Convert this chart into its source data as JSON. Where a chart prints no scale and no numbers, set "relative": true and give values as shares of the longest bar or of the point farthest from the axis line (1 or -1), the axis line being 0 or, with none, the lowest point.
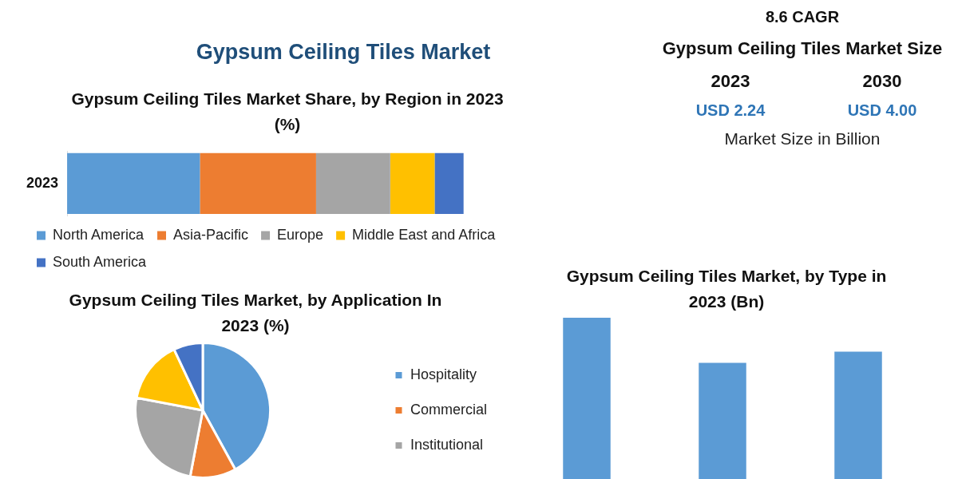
{
  "chart_data": [
    {
      "type": "other",
      "title": "Gypsum Ceiling Tiles Market"
    },
    {
      "type": "bar",
      "title": "Gypsum Ceiling Tiles Market Share, by Region in 2023 (%)",
      "orientation": "horizontal",
      "stacked": true,
      "relative": true,
      "categories": [
        "2023"
      ],
      "legend": "bottom",
      "series": [
        {
          "name": "North America",
          "color": "#5b9bd5",
          "values": [
            0.335
          ]
        },
        {
          "name": "Asia-Pacific",
          "color": "#ed7d31",
          "values": [
            0.293
          ]
        },
        {
          "name": "Europe",
          "color": "#a5a5a5",
          "values": [
            0.187
          ]
        },
        {
          "name": "Middle East and Africa",
          "color": "#ffc000",
          "values": [
            0.112
          ]
        },
        {
          "name": "South America",
          "color": "#4472c4",
          "values": [
            0.073
          ]
        }
      ]
    },
    {
      "type": "other",
      "title": "Gypsum Ceiling Tiles Market Size",
      "annotations": [
        "8.6 CAGR",
        "2023",
        "2030",
        "USD 2.24",
        "USD 4.00",
        "Market Size in Billion"
      ]
    },
    {
      "type": "pie",
      "title": "Gypsum Ceiling Tiles Market, by Application In 2023 (%)",
      "categories": [
        "Hospitality",
        "Commercial",
        "Institutional",
        null,
        null
      ],
      "values": [
        42,
        11,
        25,
        15,
        7
      ],
      "colors": [
        "#5b9bd5",
        "#ed7d31",
        "#a5a5a5",
        "#ffc000",
        "#4472c4"
      ],
      "legend": "right"
    },
    {
      "type": "bar",
      "title": "Gypsum Ceiling Tiles Market, by Type in 2023 (Bn)",
      "categories": [
        null,
        null,
        null
      ],
      "values": [
        1,
        0.72,
        0.79
      ],
      "color": "#5b9bd5",
      "relative": true
    }
  ]
}
